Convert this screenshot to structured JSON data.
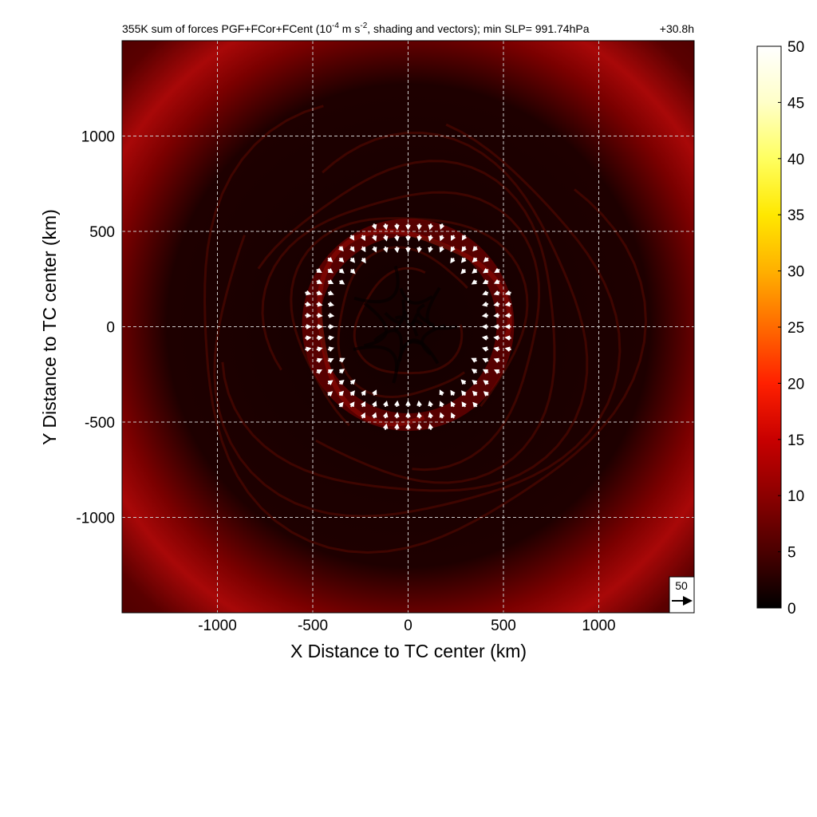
{
  "chart_data": {
    "type": "heatmap",
    "title": "355K sum of forces PGF+FCor+FCent (10",
    "title_sup1": "-4",
    "title_mid": " m s",
    "title_sup2": "-2",
    "title_end": ", shading and vectors); min SLP= 991.74hPa",
    "time_label": "+30.8h",
    "xlabel": "X Distance to TC center (km)",
    "ylabel": "Y Distance to TC center (km)",
    "xlim": [
      -1500,
      1500
    ],
    "ylim": [
      -1500,
      1500
    ],
    "x_ticks": [
      -1000,
      -500,
      0,
      500,
      1000
    ],
    "y_ticks": [
      -1000,
      -500,
      0,
      500,
      1000
    ],
    "x_tick_labels": [
      "-1000",
      "-500",
      "0",
      "500",
      "1000"
    ],
    "y_tick_labels": [
      "-1000",
      "-500",
      "0",
      "500",
      "1000"
    ],
    "grid": true,
    "colorbar": {
      "min": 0,
      "max": 50,
      "ticks": [
        "0",
        "5",
        "10",
        "15",
        "20",
        "25",
        "30",
        "35",
        "40",
        "45",
        "50"
      ],
      "colors": [
        "#000000",
        "#4a0000",
        "#8c0000",
        "#c80000",
        "#ff2000",
        "#ff6a00",
        "#ffb000",
        "#ffe800",
        "#ffff60",
        "#ffffc8",
        "#ffffff"
      ]
    },
    "ring": {
      "center_km": [
        0,
        10
      ],
      "radius_km": 500,
      "magnitude": 10,
      "eye_magnitude": 1,
      "background_magnitude": 4
    },
    "vectors": {
      "reference_label": "50",
      "reference_magnitude": 50,
      "ring_radius_km": [
        400,
        570
      ],
      "direction": "inward"
    }
  }
}
